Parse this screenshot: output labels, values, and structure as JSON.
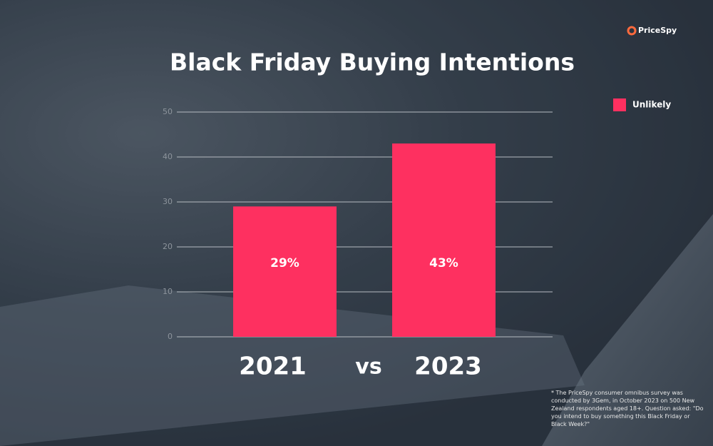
{
  "chart_data": {
    "type": "bar",
    "title": "Black Friday Buying Intentions",
    "brand": "PriceSpy",
    "categories": [
      "2021",
      "2023"
    ],
    "separator": "vs",
    "series": [
      {
        "name": "Unlikely",
        "color": "#fe3060",
        "values": [
          29,
          43
        ],
        "value_labels": [
          "29%",
          "43%"
        ]
      }
    ],
    "ylim": [
      0,
      50
    ],
    "yticks": [
      0,
      10,
      20,
      30,
      40,
      50
    ],
    "grid": true,
    "legend": "top-right",
    "footnote": "* The PriceSpy consumer omnibus survey was conducted by 3Gem, in October 2023 on 500 New Zealand respondents aged 18+. Question asked: \"Do you intend to buy something this Black Friday or Black Week?\""
  }
}
